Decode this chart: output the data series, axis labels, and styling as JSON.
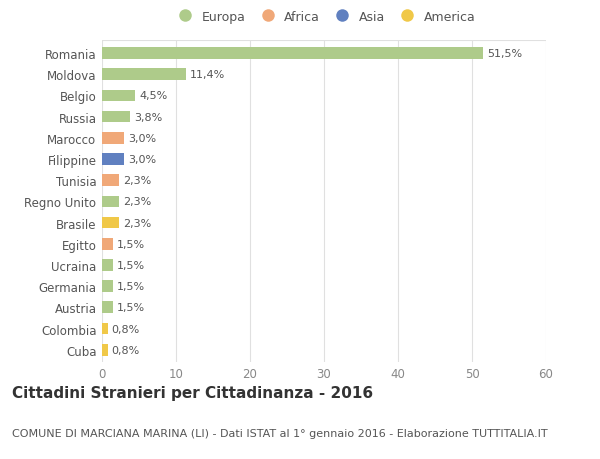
{
  "countries": [
    "Romania",
    "Moldova",
    "Belgio",
    "Russia",
    "Marocco",
    "Filippine",
    "Tunisia",
    "Regno Unito",
    "Brasile",
    "Egitto",
    "Ucraina",
    "Germania",
    "Austria",
    "Colombia",
    "Cuba"
  ],
  "values": [
    51.5,
    11.4,
    4.5,
    3.8,
    3.0,
    3.0,
    2.3,
    2.3,
    2.3,
    1.5,
    1.5,
    1.5,
    1.5,
    0.8,
    0.8
  ],
  "labels": [
    "51,5%",
    "11,4%",
    "4,5%",
    "3,8%",
    "3,0%",
    "3,0%",
    "2,3%",
    "2,3%",
    "2,3%",
    "1,5%",
    "1,5%",
    "1,5%",
    "1,5%",
    "0,8%",
    "0,8%"
  ],
  "continents": [
    "Europa",
    "Europa",
    "Europa",
    "Europa",
    "Africa",
    "Asia",
    "Africa",
    "Europa",
    "America",
    "Africa",
    "Europa",
    "Europa",
    "Europa",
    "America",
    "America"
  ],
  "continent_colors": {
    "Europa": "#aecb8a",
    "Africa": "#f0a878",
    "Asia": "#6080c0",
    "America": "#f0c848"
  },
  "legend_order": [
    "Europa",
    "Africa",
    "Asia",
    "America"
  ],
  "title": "Cittadini Stranieri per Cittadinanza - 2016",
  "subtitle": "COMUNE DI MARCIANA MARINA (LI) - Dati ISTAT al 1° gennaio 2016 - Elaborazione TUTTITALIA.IT",
  "xlim": [
    0,
    60
  ],
  "xticks": [
    0,
    10,
    20,
    30,
    40,
    50,
    60
  ],
  "background_color": "#ffffff",
  "grid_color": "#e0e0e0",
  "bar_height": 0.55,
  "title_fontsize": 11,
  "subtitle_fontsize": 8,
  "label_fontsize": 8,
  "tick_fontsize": 8.5,
  "legend_fontsize": 9
}
